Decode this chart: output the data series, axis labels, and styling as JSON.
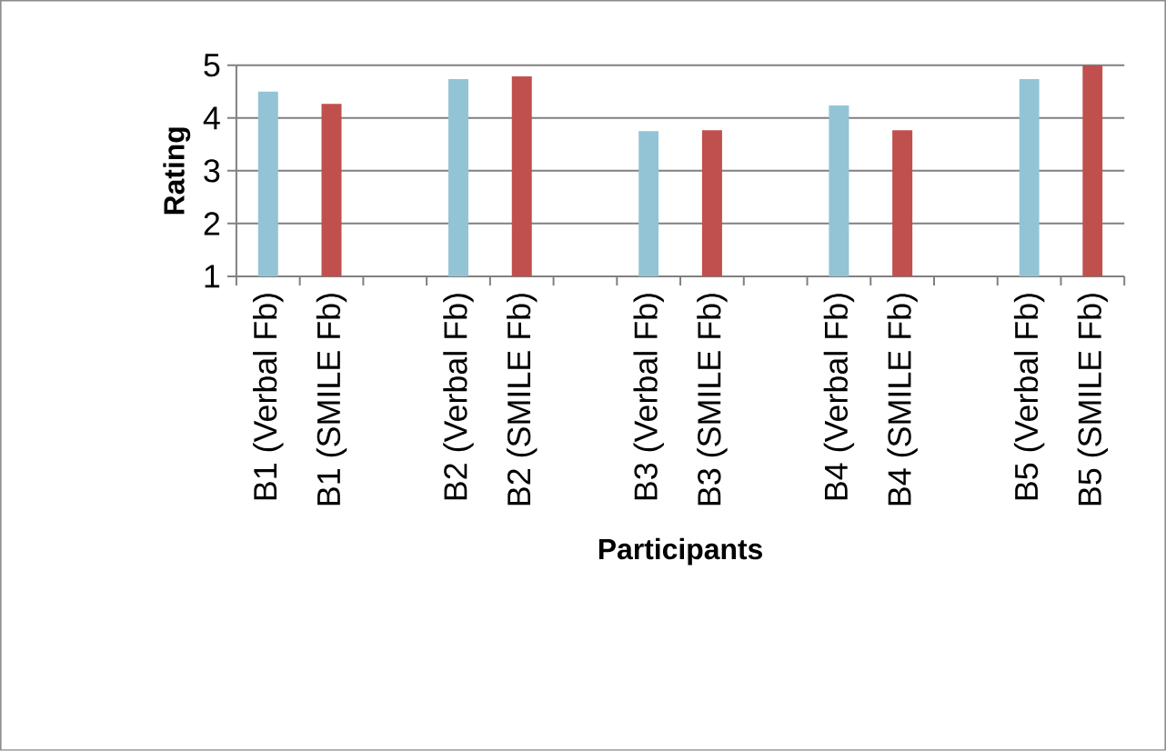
{
  "chart_data": {
    "type": "bar",
    "xlabel": "Participants",
    "ylabel": "Rating",
    "categories": [
      "B1 (Verbal Fb)",
      "B1 (SMILE Fb)",
      null,
      "B2 (Verbal Fb)",
      "B2 (SMILE Fb)",
      null,
      "B3 (Verbal Fb)",
      "B3 (SMILE Fb)",
      null,
      "B4 (Verbal Fb)",
      "B4 (SMILE Fb)",
      null,
      "B5 (Verbal Fb)",
      "B5 (SMILE Fb)"
    ],
    "values": [
      4.5,
      4.27,
      null,
      4.74,
      4.79,
      null,
      3.75,
      3.77,
      null,
      4.24,
      3.77,
      null,
      4.74,
      5.0
    ],
    "colors": [
      "#93c4d6",
      "#c0504d",
      null,
      "#93c4d6",
      "#c0504d",
      null,
      "#93c4d6",
      "#c0504d",
      null,
      "#93c4d6",
      "#c0504d",
      null,
      "#93c4d6",
      "#c0504d"
    ],
    "ylim": [
      1,
      5
    ],
    "yticks": [
      1,
      2,
      3,
      4,
      5
    ],
    "grid": "y"
  }
}
